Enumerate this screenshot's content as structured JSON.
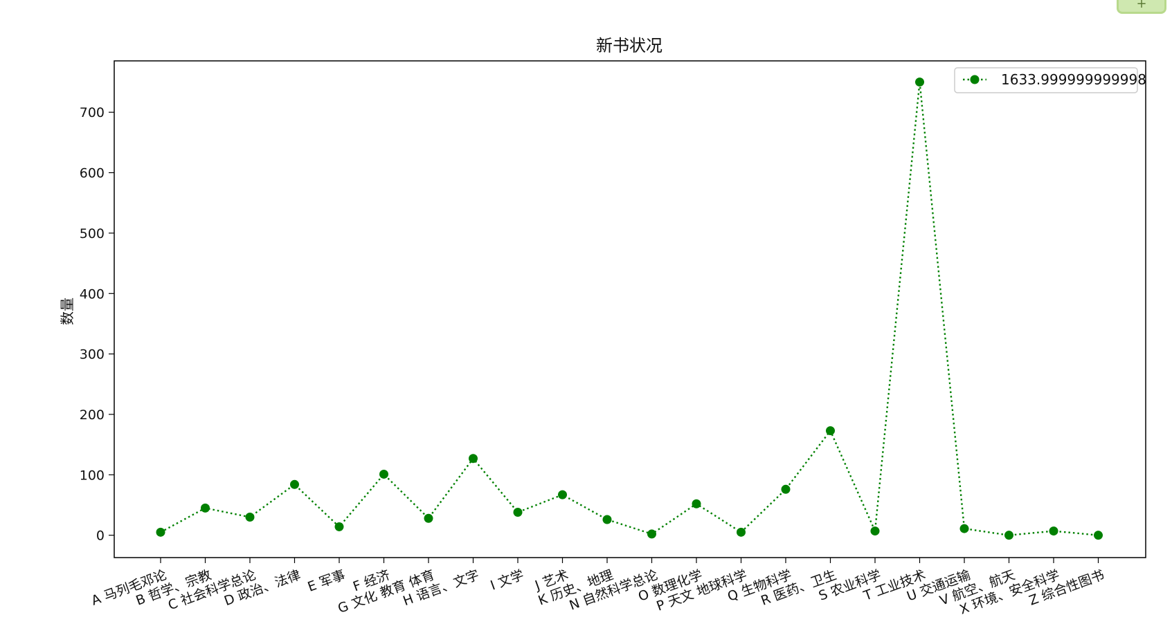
{
  "corner_button": {
    "label": "+"
  },
  "chart_data": {
    "type": "line",
    "title": "新书状况",
    "xlabel": "",
    "ylabel": "数量",
    "categories": [
      "A 马列毛邓论",
      "B 哲学、宗教",
      "C 社会科学总论",
      "D 政治、法律",
      "E 军事",
      "F 经济",
      "G 文化 教育 体育",
      "H 语言、文字",
      "I 文学",
      "J 艺术",
      "K 历史、地理",
      "N 自然科学总论",
      "O 数理化学",
      "P 天文 地球科学",
      "Q 生物科学",
      "R 医药、卫生",
      "S 农业科学",
      "T 工业技术",
      "U 交通运输",
      "V 航空、航天",
      "X 环境、安全科学",
      "Z 综合性图书"
    ],
    "series": [
      {
        "name": "1633.999999999998",
        "values": [
          5,
          45,
          30,
          84,
          14,
          101,
          28,
          127,
          38,
          67,
          26,
          2,
          52,
          5,
          76,
          173,
          7,
          750,
          11,
          0,
          7,
          0
        ],
        "color": "#008000",
        "line_style": "dotted",
        "marker": "circle"
      }
    ],
    "ylim": [
      -37,
      785
    ],
    "yticks": [
      0,
      100,
      200,
      300,
      400,
      500,
      600,
      700
    ],
    "grid": false,
    "legend": "top-right"
  }
}
